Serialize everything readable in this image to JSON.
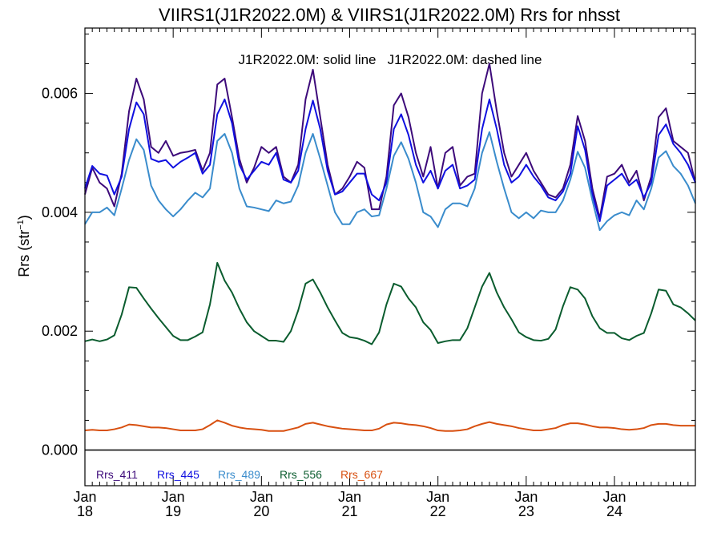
{
  "chart_data": {
    "type": "line",
    "title": "VIIRS1(J1R2022.0M) & VIIRS1(J1R2022.0M)  Rrs for nhsst",
    "annotation": "J1R2022.0M: solid line   J1R2022.0M: dashed line",
    "ylabel": "Rrs (str",
    "ylabel_sup": "−1",
    "ylabel_close": ")",
    "xlim": [
      0,
      83
    ],
    "ylim": [
      -0.0006,
      0.0071
    ],
    "yticks": [
      0.0,
      0.002,
      0.004,
      0.006
    ],
    "ytick_labels": [
      "0.000",
      "0.002",
      "0.004",
      "0.006"
    ],
    "xticks": [
      {
        "pos": 0,
        "line1": "Jan",
        "line2": "18"
      },
      {
        "pos": 12,
        "line1": "Jan",
        "line2": "19"
      },
      {
        "pos": 24,
        "line1": "Jan",
        "line2": "20"
      },
      {
        "pos": 36,
        "line1": "Jan",
        "line2": "21"
      },
      {
        "pos": 48,
        "line1": "Jan",
        "line2": "22"
      },
      {
        "pos": 60,
        "line1": "Jan",
        "line2": "23"
      },
      {
        "pos": 72,
        "line1": "Jan",
        "line2": "24"
      }
    ],
    "zero_line": 0.0,
    "series": [
      {
        "name": "Rrs_411",
        "color": "#3d0a7a",
        "values": [
          0.0043,
          0.00475,
          0.0045,
          0.0044,
          0.0041,
          0.00465,
          0.0057,
          0.00625,
          0.0059,
          0.0051,
          0.005,
          0.0052,
          0.00495,
          0.005,
          0.00502,
          0.00505,
          0.0047,
          0.005,
          0.00615,
          0.00625,
          0.0056,
          0.0049,
          0.0045,
          0.00475,
          0.0051,
          0.005,
          0.0051,
          0.0046,
          0.0045,
          0.0048,
          0.0059,
          0.0064,
          0.0056,
          0.0048,
          0.0043,
          0.0044,
          0.0046,
          0.00485,
          0.00475,
          0.00405,
          0.00405,
          0.0046,
          0.0058,
          0.006,
          0.0056,
          0.005,
          0.0046,
          0.0051,
          0.0044,
          0.005,
          0.0051,
          0.00445,
          0.0046,
          0.00465,
          0.006,
          0.0065,
          0.0057,
          0.005,
          0.0046,
          0.0048,
          0.005,
          0.0047,
          0.0045,
          0.0043,
          0.00425,
          0.0044,
          0.0048,
          0.00562,
          0.0052,
          0.0044,
          0.0039,
          0.0046,
          0.00465,
          0.0048,
          0.0045,
          0.0047,
          0.0042,
          0.0046,
          0.0056,
          0.00575,
          0.0052,
          0.0051,
          0.005,
          0.0045
        ]
      },
      {
        "name": "Rrs_445",
        "color": "#1010e0",
        "values": [
          0.0044,
          0.00478,
          0.00465,
          0.00462,
          0.0043,
          0.0046,
          0.0054,
          0.00585,
          0.00565,
          0.0049,
          0.00485,
          0.00488,
          0.00475,
          0.00485,
          0.00492,
          0.005,
          0.00465,
          0.0048,
          0.00565,
          0.0059,
          0.0055,
          0.0048,
          0.00455,
          0.0047,
          0.00485,
          0.0048,
          0.005,
          0.00455,
          0.0045,
          0.0047,
          0.0054,
          0.00588,
          0.0054,
          0.0047,
          0.0043,
          0.00435,
          0.0045,
          0.00465,
          0.00465,
          0.0043,
          0.0042,
          0.0045,
          0.0054,
          0.00565,
          0.0053,
          0.0048,
          0.0045,
          0.0047,
          0.0044,
          0.0047,
          0.0048,
          0.0044,
          0.00445,
          0.00455,
          0.0054,
          0.0059,
          0.0054,
          0.0048,
          0.0045,
          0.0046,
          0.0048,
          0.0046,
          0.00445,
          0.00425,
          0.0042,
          0.00435,
          0.00465,
          0.00545,
          0.00505,
          0.0043,
          0.00385,
          0.00445,
          0.00455,
          0.00465,
          0.00445,
          0.00455,
          0.00425,
          0.0045,
          0.0053,
          0.00548,
          0.00515,
          0.005,
          0.0048,
          0.0045
        ]
      },
      {
        "name": "Rrs_489",
        "color": "#3a8ccc",
        "values": [
          0.0038,
          0.004,
          0.004,
          0.00408,
          0.00395,
          0.0044,
          0.00488,
          0.00523,
          0.00505,
          0.00445,
          0.0042,
          0.00405,
          0.00393,
          0.00405,
          0.0042,
          0.00433,
          0.00425,
          0.0044,
          0.0052,
          0.00532,
          0.005,
          0.0044,
          0.0041,
          0.00408,
          0.00405,
          0.00402,
          0.0042,
          0.00415,
          0.00418,
          0.00445,
          0.005,
          0.00532,
          0.0049,
          0.00445,
          0.004,
          0.0038,
          0.0038,
          0.004,
          0.00405,
          0.00393,
          0.00395,
          0.0044,
          0.00495,
          0.00518,
          0.0049,
          0.0045,
          0.004,
          0.00393,
          0.00375,
          0.00405,
          0.00415,
          0.00415,
          0.0041,
          0.0044,
          0.005,
          0.00535,
          0.00485,
          0.0044,
          0.004,
          0.0039,
          0.004,
          0.0039,
          0.00403,
          0.004,
          0.004,
          0.0042,
          0.00455,
          0.00502,
          0.00475,
          0.0042,
          0.0037,
          0.00385,
          0.00395,
          0.004,
          0.00395,
          0.0042,
          0.00405,
          0.0044,
          0.00492,
          0.00503,
          0.00478,
          0.00465,
          0.00445,
          0.00415
        ]
      },
      {
        "name": "Rrs_556",
        "color": "#0a5c2e",
        "values": [
          0.00183,
          0.00186,
          0.00183,
          0.00186,
          0.00193,
          0.00228,
          0.00274,
          0.00273,
          0.00255,
          0.00238,
          0.00222,
          0.00207,
          0.00192,
          0.00185,
          0.00185,
          0.00191,
          0.00198,
          0.00245,
          0.00315,
          0.00285,
          0.00265,
          0.00238,
          0.00215,
          0.002,
          0.00192,
          0.00184,
          0.00184,
          0.00182,
          0.002,
          0.00235,
          0.0028,
          0.00287,
          0.00265,
          0.0024,
          0.00218,
          0.00197,
          0.0019,
          0.00188,
          0.00184,
          0.00178,
          0.00198,
          0.00245,
          0.0028,
          0.00275,
          0.00255,
          0.0024,
          0.00215,
          0.00202,
          0.0018,
          0.00183,
          0.00185,
          0.00185,
          0.00205,
          0.0024,
          0.00275,
          0.00298,
          0.00265,
          0.0024,
          0.0022,
          0.00198,
          0.0019,
          0.00185,
          0.00184,
          0.00187,
          0.00203,
          0.00242,
          0.00274,
          0.0027,
          0.00255,
          0.00225,
          0.00205,
          0.00197,
          0.00197,
          0.00188,
          0.00185,
          0.00192,
          0.00197,
          0.0023,
          0.0027,
          0.00268,
          0.00245,
          0.0024,
          0.0023,
          0.00218
        ]
      },
      {
        "name": "Rrs_667",
        "color": "#d85010",
        "values": [
          0.00033,
          0.00034,
          0.00033,
          0.00033,
          0.00035,
          0.00038,
          0.00043,
          0.00042,
          0.0004,
          0.00038,
          0.00038,
          0.00037,
          0.00035,
          0.00033,
          0.00033,
          0.00033,
          0.00035,
          0.00042,
          0.0005,
          0.00046,
          0.00041,
          0.00038,
          0.00036,
          0.00035,
          0.00034,
          0.00032,
          0.00032,
          0.00032,
          0.00035,
          0.00038,
          0.00044,
          0.00046,
          0.00043,
          0.0004,
          0.00038,
          0.00036,
          0.00035,
          0.00034,
          0.00033,
          0.00033,
          0.00036,
          0.00043,
          0.00046,
          0.00045,
          0.00043,
          0.00042,
          0.0004,
          0.00037,
          0.00033,
          0.00032,
          0.00032,
          0.00033,
          0.00035,
          0.0004,
          0.00044,
          0.00047,
          0.00044,
          0.00042,
          0.0004,
          0.00037,
          0.00035,
          0.00033,
          0.00033,
          0.00035,
          0.00037,
          0.00042,
          0.00045,
          0.00045,
          0.00043,
          0.0004,
          0.00038,
          0.00038,
          0.00037,
          0.00035,
          0.00034,
          0.00035,
          0.00037,
          0.00042,
          0.00044,
          0.00044,
          0.00042,
          0.00041,
          0.00041,
          0.00041
        ]
      }
    ]
  }
}
